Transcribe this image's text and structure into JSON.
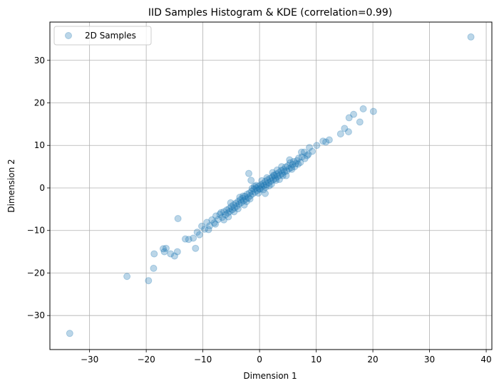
{
  "chart_data": {
    "type": "scatter",
    "title": "IID Samples Histogram & KDE (correlation=0.99)",
    "xlabel": "Dimension 1",
    "ylabel": "Dimension 2",
    "xlim": [
      -37,
      41
    ],
    "ylim": [
      -38,
      39
    ],
    "xticks": [
      -30,
      -20,
      -10,
      0,
      10,
      20,
      30,
      40
    ],
    "yticks": [
      -30,
      -20,
      -10,
      0,
      10,
      20,
      30
    ],
    "xtick_labels": [
      "−30",
      "−20",
      "−10",
      "0",
      "10",
      "20",
      "30",
      "40"
    ],
    "ytick_labels": [
      "−30",
      "−20",
      "−10",
      "0",
      "10",
      "20",
      "30"
    ],
    "grid": true,
    "legend": {
      "position": "top-left",
      "entries": [
        "2D Samples"
      ]
    },
    "series": [
      {
        "name": "2D Samples",
        "color": "#1f77b4",
        "alpha": 0.3,
        "points": [
          [
            37.3,
            35.5
          ],
          [
            -33.5,
            -34.2
          ],
          [
            20.1,
            18.0
          ],
          [
            18.3,
            18.6
          ],
          [
            17.7,
            15.5
          ],
          [
            16.6,
            17.3
          ],
          [
            15.8,
            16.5
          ],
          [
            15.7,
            13.2
          ],
          [
            15.0,
            14.0
          ],
          [
            14.3,
            12.7
          ],
          [
            12.3,
            11.3
          ],
          [
            11.7,
            10.8
          ],
          [
            11.2,
            11.0
          ],
          [
            10.1,
            10.0
          ],
          [
            9.3,
            8.6
          ],
          [
            8.8,
            9.5
          ],
          [
            8.4,
            7.6
          ],
          [
            7.9,
            8.4
          ],
          [
            8.0,
            6.9
          ],
          [
            7.5,
            7.3
          ],
          [
            7.2,
            6.0
          ],
          [
            6.9,
            7.0
          ],
          [
            6.6,
            6.4
          ],
          [
            6.4,
            5.7
          ],
          [
            6.2,
            5.0
          ],
          [
            6.0,
            6.2
          ],
          [
            5.8,
            5.5
          ],
          [
            5.6,
            4.8
          ],
          [
            5.4,
            5.9
          ],
          [
            5.2,
            4.5
          ],
          [
            5.0,
            5.2
          ],
          [
            4.8,
            4.0
          ],
          [
            4.6,
            4.9
          ],
          [
            4.4,
            3.8
          ],
          [
            4.2,
            4.3
          ],
          [
            4.0,
            3.4
          ],
          [
            3.8,
            4.1
          ],
          [
            3.6,
            3.0
          ],
          [
            3.4,
            3.6
          ],
          [
            3.2,
            2.7
          ],
          [
            3.0,
            3.3
          ],
          [
            2.8,
            2.2
          ],
          [
            2.6,
            2.9
          ],
          [
            2.4,
            1.9
          ],
          [
            2.2,
            2.5
          ],
          [
            2.0,
            1.6
          ],
          [
            1.8,
            2.2
          ],
          [
            1.6,
            1.2
          ],
          [
            1.4,
            1.9
          ],
          [
            1.2,
            0.8
          ],
          [
            1.0,
            1.5
          ],
          [
            0.8,
            0.6
          ],
          [
            0.6,
            1.0
          ],
          [
            0.4,
            0.2
          ],
          [
            0.2,
            0.7
          ],
          [
            0.0,
            -0.2
          ],
          [
            -0.2,
            0.4
          ],
          [
            -0.4,
            -0.6
          ],
          [
            -0.6,
            0.0
          ],
          [
            -0.8,
            -1.0
          ],
          [
            -1.0,
            -0.3
          ],
          [
            -1.2,
            -1.4
          ],
          [
            -1.4,
            -0.8
          ],
          [
            -1.6,
            -1.8
          ],
          [
            -1.8,
            -1.2
          ],
          [
            -2.0,
            -2.3
          ],
          [
            -2.2,
            -1.5
          ],
          [
            -2.4,
            -2.6
          ],
          [
            -2.6,
            -2.0
          ],
          [
            -2.8,
            -3.0
          ],
          [
            -3.0,
            -2.4
          ],
          [
            -3.2,
            -3.4
          ],
          [
            -3.4,
            -2.8
          ],
          [
            -3.6,
            -3.8
          ],
          [
            -3.8,
            -3.2
          ],
          [
            -4.0,
            -4.3
          ],
          [
            -4.2,
            -3.6
          ],
          [
            -4.4,
            -4.7
          ],
          [
            -4.6,
            -4.0
          ],
          [
            -4.8,
            -5.1
          ],
          [
            -5.0,
            -4.4
          ],
          [
            -5.2,
            -5.5
          ],
          [
            -5.4,
            -4.9
          ],
          [
            -5.6,
            -5.9
          ],
          [
            -5.8,
            -5.2
          ],
          [
            -6.0,
            -6.3
          ],
          [
            -6.3,
            -5.6
          ],
          [
            -6.6,
            -6.9
          ],
          [
            -7.0,
            -6.2
          ],
          [
            -7.3,
            -7.4
          ],
          [
            -7.7,
            -6.6
          ],
          [
            -8.0,
            -8.2
          ],
          [
            -8.4,
            -7.5
          ],
          [
            -8.8,
            -8.9
          ],
          [
            -9.3,
            -8.1
          ],
          [
            -9.7,
            -9.7
          ],
          [
            -10.2,
            -9.0
          ],
          [
            -10.6,
            -11.0
          ],
          [
            -11.0,
            -10.4
          ],
          [
            -11.3,
            -14.2
          ],
          [
            -11.7,
            -11.8
          ],
          [
            -12.5,
            -12.1
          ],
          [
            -13.1,
            -12.0
          ],
          [
            -14.4,
            -7.2
          ],
          [
            -14.5,
            -15.0
          ],
          [
            -15.0,
            -16.0
          ],
          [
            -15.7,
            -15.5
          ],
          [
            -16.5,
            -14.2
          ],
          [
            -17.0,
            -14.3
          ],
          [
            -16.8,
            -15.0
          ],
          [
            -18.6,
            -15.5
          ],
          [
            -18.7,
            -18.9
          ],
          [
            -19.6,
            -21.8
          ],
          [
            -23.4,
            -20.8
          ],
          [
            -1.9,
            3.4
          ],
          [
            -1.5,
            1.8
          ],
          [
            1.0,
            -1.3
          ],
          [
            0.4,
            1.7
          ],
          [
            2.5,
            3.0
          ],
          [
            3.5,
            2.0
          ],
          [
            -3.5,
            -2.2
          ],
          [
            -2.7,
            -4.0
          ],
          [
            -5.1,
            -3.5
          ],
          [
            -6.3,
            -7.5
          ],
          [
            4.7,
            2.9
          ],
          [
            -4.5,
            -5.6
          ],
          [
            5.3,
            6.6
          ],
          [
            6.8,
            5.6
          ],
          [
            -0.2,
            -1.2
          ],
          [
            1.7,
            0.5
          ],
          [
            -2.9,
            -1.9
          ],
          [
            3.9,
            5.0
          ],
          [
            2.9,
            1.8
          ],
          [
            -0.9,
            0.4
          ],
          [
            0.1,
            -0.3
          ],
          [
            1.1,
            0.2
          ],
          [
            -1.7,
            -2.6
          ],
          [
            2.3,
            3.6
          ],
          [
            -3.8,
            -4.9
          ],
          [
            4.1,
            2.9
          ],
          [
            5.7,
            4.4
          ],
          [
            -5.5,
            -6.8
          ],
          [
            -6.8,
            -5.8
          ],
          [
            7.4,
            8.4
          ],
          [
            -7.8,
            -8.5
          ],
          [
            -9.0,
            -9.8
          ],
          [
            8.6,
            7.9
          ],
          [
            0.7,
            -0.4
          ],
          [
            -0.6,
            0.6
          ],
          [
            1.3,
            2.4
          ],
          [
            -1.3,
            -0.1
          ],
          [
            2.1,
            0.9
          ],
          [
            -2.3,
            -3.2
          ],
          [
            3.1,
            4.2
          ]
        ]
      }
    ]
  }
}
